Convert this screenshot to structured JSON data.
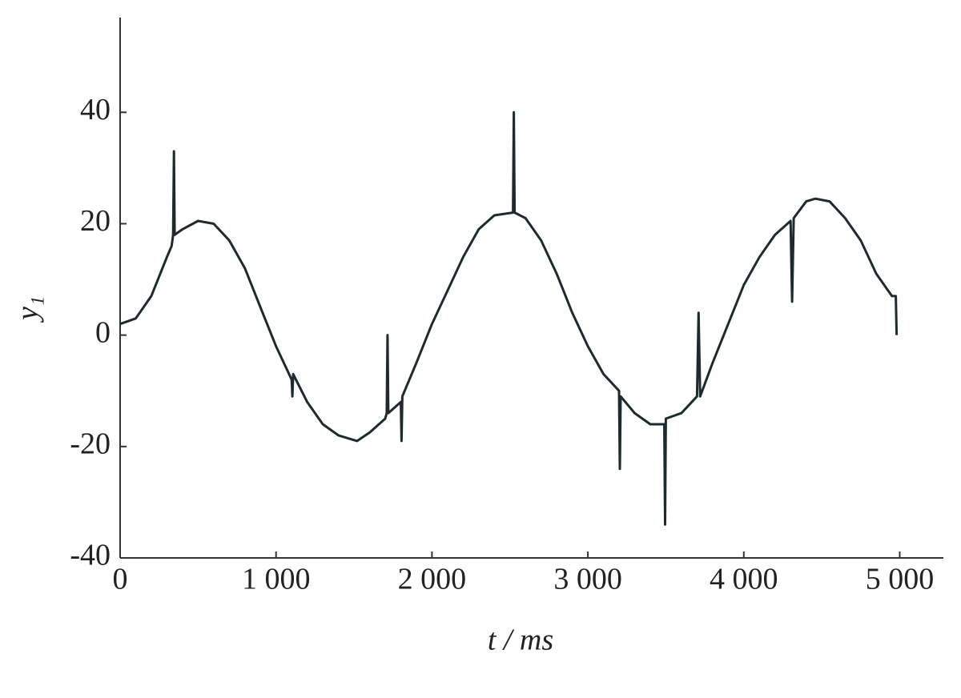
{
  "chart_data": {
    "type": "line",
    "x_label": "t / ms",
    "y_label": "y₁",
    "x": [
      0,
      50,
      100,
      200,
      300,
      330,
      340,
      345,
      350,
      400,
      500,
      600,
      700,
      800,
      900,
      1000,
      1100,
      1105,
      1110,
      1200,
      1300,
      1400,
      1520,
      1600,
      1700,
      1710,
      1715,
      1720,
      1800,
      1805,
      1810,
      1900,
      2000,
      2100,
      2200,
      2300,
      2400,
      2520,
      2525,
      2530,
      2600,
      2700,
      2800,
      2900,
      3000,
      3100,
      3200,
      3205,
      3210,
      3300,
      3400,
      3490,
      3495,
      3500,
      3600,
      3700,
      3710,
      3720,
      3800,
      3900,
      4000,
      4100,
      4200,
      4300,
      4310,
      4320,
      4400,
      4460,
      4550,
      4650,
      4750,
      4850,
      4950,
      4975,
      4980
    ],
    "series": [
      {
        "color": "#1e2a2e",
        "values": [
          2,
          2.5,
          3,
          7,
          14,
          16,
          18,
          33,
          18,
          19,
          20.5,
          20,
          17,
          12,
          5,
          -2,
          -8,
          -11,
          -7,
          -12,
          -16,
          -18,
          -19,
          -17.5,
          -15,
          -14,
          0,
          -14,
          -12,
          -19,
          -11,
          -5,
          2,
          8,
          14,
          19,
          21.5,
          22,
          40,
          22,
          21,
          17,
          11,
          4,
          -2,
          -7,
          -10,
          -24,
          -11,
          -14,
          -16,
          -16,
          -34,
          -15,
          -14,
          -11,
          4,
          -11,
          -5,
          2,
          9,
          14,
          18,
          20.5,
          6,
          21,
          24,
          24.5,
          24,
          21,
          17,
          11,
          7,
          7,
          0
        ]
      }
    ],
    "xlim": [
      0,
      5280
    ],
    "ylim": [
      -40,
      57
    ],
    "xticks": [
      0,
      {
        "value": 1000,
        "label": "1 000"
      },
      {
        "value": 2000,
        "label": "2 000"
      },
      {
        "value": 3000,
        "label": "3 000"
      },
      {
        "value": 4000,
        "label": "4 000"
      },
      {
        "value": 5000,
        "label": "5 000"
      }
    ],
    "yticks": [
      -40,
      -20,
      0,
      20,
      40
    ]
  }
}
